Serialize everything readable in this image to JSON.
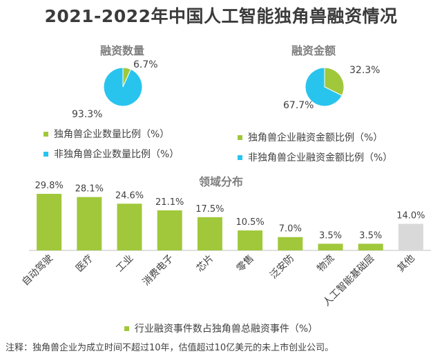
{
  "title": "2021-2022年中国人工智能独角兽融资情况",
  "colors": {
    "green": "#a0c83a",
    "cyan": "#29c4ee",
    "gray": "#d9d9d9"
  },
  "pie_left": {
    "title": "融资数量",
    "labels": [
      "6.7%",
      "93.3%"
    ],
    "legend": [
      "独角兽企业数量比例（%）",
      "非独角兽企业数量比例（%）"
    ]
  },
  "pie_right": {
    "title": "融资金额",
    "labels": [
      "32.3%",
      "67.7%"
    ],
    "legend": [
      "独角兽企业融资金额比例（%）",
      "非独角兽企业融资金额比例（%）"
    ]
  },
  "bar": {
    "title": "领域分布",
    "legend": "行业融资事件数占独角兽总融资事件（%）"
  },
  "footnote": "注释：独角兽企业为成立时间不超过10年，估值超过10亿美元的未上市创业公司。",
  "chart_data": [
    {
      "type": "pie",
      "title": "融资数量",
      "categories": [
        "独角兽企业数量比例（%）",
        "非独角兽企业数量比例（%）"
      ],
      "values": [
        6.7,
        93.3
      ],
      "colors": [
        "#a0c83a",
        "#29c4ee"
      ]
    },
    {
      "type": "pie",
      "title": "融资金额",
      "categories": [
        "独角兽企业融资金额比例（%）",
        "非独角兽企业融资金额比例（%）"
      ],
      "values": [
        32.3,
        67.7
      ],
      "colors": [
        "#a0c83a",
        "#29c4ee"
      ]
    },
    {
      "type": "bar",
      "title": "领域分布",
      "categories": [
        "自动驾驶",
        "医疗",
        "工业",
        "消费电子",
        "芯片",
        "零售",
        "泛安防",
        "物流",
        "人工智能基础层",
        "其他"
      ],
      "values": [
        29.8,
        28.1,
        24.6,
        21.1,
        17.5,
        10.5,
        7.0,
        3.5,
        3.5,
        14.0
      ],
      "value_labels": [
        "29.8%",
        "28.1%",
        "24.6%",
        "21.1%",
        "17.5%",
        "10.5%",
        "7.0%",
        "3.5%",
        "3.5%",
        "14.0%"
      ],
      "bar_colors": [
        "#a0c83a",
        "#a0c83a",
        "#a0c83a",
        "#a0c83a",
        "#a0c83a",
        "#a0c83a",
        "#a0c83a",
        "#a0c83a",
        "#a0c83a",
        "#d9d9d9"
      ],
      "series": [
        {
          "name": "行业融资事件数占独角兽总融资事件（%）"
        }
      ],
      "ylim": [
        0,
        30
      ],
      "legend": "bottom"
    }
  ]
}
